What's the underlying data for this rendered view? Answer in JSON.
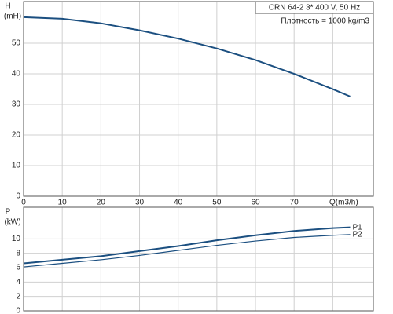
{
  "chart_data": [
    {
      "type": "line",
      "title": "CRN 64-2   3* 400 V, 50 Hz",
      "subtitle": "Плотность = 1000 kg/m3",
      "ylabel": "H",
      "yunit": "(mH)",
      "x": [
        0,
        10,
        20,
        30,
        40,
        50,
        60,
        70,
        80,
        84.5
      ],
      "series": [
        {
          "name": "H",
          "color": "#1b4f80",
          "values": [
            58.5,
            58,
            56.5,
            54.2,
            51.5,
            48.3,
            44.5,
            40,
            35,
            32.6
          ]
        }
      ],
      "xlim": [
        0,
        90.5
      ],
      "xticks": [
        0,
        10,
        20,
        30,
        40,
        50,
        60,
        70,
        {
          "value": 80,
          "label": "Q(m3/h)"
        }
      ],
      "ylim": [
        0,
        63.6
      ],
      "yticks": [
        0,
        10,
        20,
        30,
        40,
        50
      ],
      "grid": true
    },
    {
      "type": "line",
      "ylabel": "P",
      "yunit": "(kW)",
      "x": [
        0,
        10,
        20,
        30,
        40,
        50,
        60,
        70,
        80,
        84.5
      ],
      "series": [
        {
          "name": "P1",
          "color": "#1b4f80",
          "values": [
            6.6,
            7.1,
            7.6,
            8.3,
            9.0,
            9.8,
            10.5,
            11.1,
            11.5,
            11.6
          ]
        },
        {
          "name": "P2",
          "color": "#1b4f80",
          "values": [
            6.1,
            6.6,
            7.1,
            7.7,
            8.4,
            9.1,
            9.7,
            10.2,
            10.5,
            10.6
          ]
        }
      ],
      "xlim": [
        0,
        90.5
      ],
      "ylim": [
        0,
        14.4
      ],
      "yticks": [
        0,
        2,
        4,
        6,
        8,
        10
      ],
      "grid": true
    }
  ]
}
